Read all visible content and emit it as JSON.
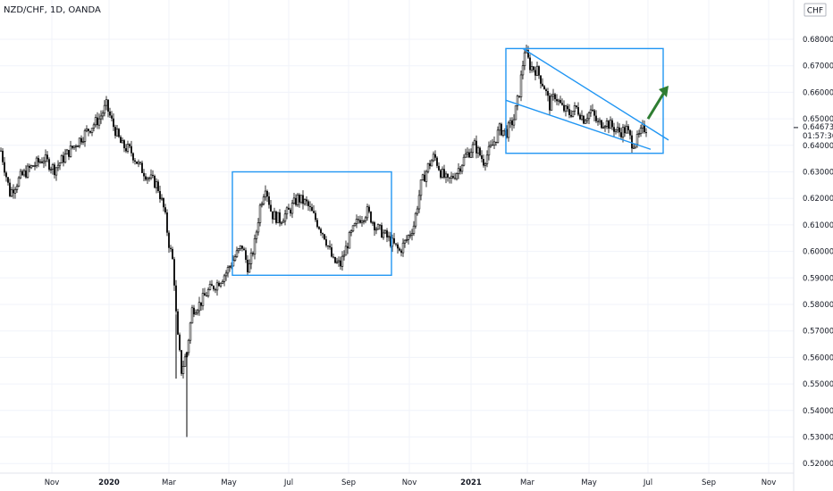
{
  "symbol_title": "NZD/CHF, 1D, OANDA",
  "currency": "CHF",
  "current_price": "0.64673",
  "countdown": "01:57:36",
  "colors": {
    "candle": "#000000",
    "box": "#2196f3",
    "arrow": "#2e7d32",
    "grid": "#f0f3fa"
  },
  "chart_data": {
    "type": "candlestick",
    "title": "NZD/CHF, 1D, OANDA",
    "ylim": [
      0.515,
      0.69
    ],
    "grid": false,
    "y_ticks": [
      "0.68000",
      "0.67000",
      "0.66000",
      "0.65000",
      "0.64000",
      "0.63000",
      "0.62000",
      "0.61000",
      "0.60000",
      "0.59000",
      "0.58000",
      "0.57000",
      "0.56000",
      "0.55000",
      "0.54000",
      "0.53000",
      "0.52000"
    ],
    "x_ticks": [
      {
        "label": "Nov",
        "bold": false
      },
      {
        "label": "2020",
        "bold": true
      },
      {
        "label": "Mar",
        "bold": false
      },
      {
        "label": "May",
        "bold": false
      },
      {
        "label": "Jul",
        "bold": false
      },
      {
        "label": "Sep",
        "bold": false
      },
      {
        "label": "Nov",
        "bold": false
      },
      {
        "label": "2021",
        "bold": true
      },
      {
        "label": "Mar",
        "bold": false
      },
      {
        "label": "May",
        "bold": false
      },
      {
        "label": "Jul",
        "bold": false
      },
      {
        "label": "Sep",
        "bold": false
      },
      {
        "label": "Nov",
        "bold": false
      }
    ],
    "price_path": [
      [
        0,
        0.638
      ],
      [
        10,
        0.622
      ],
      [
        22,
        0.628
      ],
      [
        35,
        0.632
      ],
      [
        48,
        0.635
      ],
      [
        60,
        0.631
      ],
      [
        72,
        0.636
      ],
      [
        85,
        0.641
      ],
      [
        98,
        0.646
      ],
      [
        110,
        0.65
      ],
      [
        118,
        0.655
      ],
      [
        125,
        0.648
      ],
      [
        135,
        0.64
      ],
      [
        145,
        0.638
      ],
      [
        155,
        0.632
      ],
      [
        165,
        0.628
      ],
      [
        175,
        0.625
      ],
      [
        183,
        0.615
      ],
      [
        188,
        0.603
      ],
      [
        193,
        0.595
      ],
      [
        197,
        0.57
      ],
      [
        202,
        0.555
      ],
      [
        208,
        0.562
      ],
      [
        214,
        0.578
      ],
      [
        222,
        0.58
      ],
      [
        232,
        0.585
      ],
      [
        242,
        0.588
      ],
      [
        252,
        0.592
      ],
      [
        262,
        0.598
      ],
      [
        270,
        0.602
      ],
      [
        277,
        0.593
      ],
      [
        284,
        0.603
      ],
      [
        290,
        0.617
      ],
      [
        296,
        0.625
      ],
      [
        303,
        0.614
      ],
      [
        312,
        0.612
      ],
      [
        322,
        0.615
      ],
      [
        332,
        0.62
      ],
      [
        342,
        0.618
      ],
      [
        352,
        0.612
      ],
      [
        362,
        0.606
      ],
      [
        372,
        0.596
      ],
      [
        380,
        0.595
      ],
      [
        390,
        0.605
      ],
      [
        400,
        0.612
      ],
      [
        410,
        0.615
      ],
      [
        420,
        0.609
      ],
      [
        430,
        0.606
      ],
      [
        438,
        0.603
      ],
      [
        446,
        0.6
      ],
      [
        455,
        0.605
      ],
      [
        462,
        0.61
      ],
      [
        470,
        0.625
      ],
      [
        478,
        0.632
      ],
      [
        485,
        0.636
      ],
      [
        492,
        0.63
      ],
      [
        500,
        0.626
      ],
      [
        510,
        0.63
      ],
      [
        520,
        0.636
      ],
      [
        530,
        0.64
      ],
      [
        540,
        0.634
      ],
      [
        550,
        0.64
      ],
      [
        558,
        0.646
      ],
      [
        566,
        0.645
      ],
      [
        574,
        0.65
      ],
      [
        580,
        0.66
      ],
      [
        586,
        0.676
      ],
      [
        592,
        0.67
      ],
      [
        600,
        0.668
      ],
      [
        608,
        0.662
      ],
      [
        614,
        0.655
      ],
      [
        620,
        0.659
      ],
      [
        628,
        0.654
      ],
      [
        636,
        0.652
      ],
      [
        644,
        0.654
      ],
      [
        652,
        0.65
      ],
      [
        660,
        0.653
      ],
      [
        668,
        0.648
      ],
      [
        676,
        0.649
      ],
      [
        684,
        0.647
      ],
      [
        692,
        0.645
      ],
      [
        700,
        0.646
      ],
      [
        706,
        0.641
      ],
      [
        712,
        0.642
      ],
      [
        718,
        0.646
      ],
      [
        722,
        0.6467
      ]
    ],
    "extreme_wicks": [
      {
        "day": 208,
        "low": 0.53
      },
      {
        "day": 196,
        "low": 0.552
      }
    ],
    "annotations": [
      {
        "type": "rectangle",
        "x": [
          260,
          438
        ],
        "y": [
          0.591,
          0.63
        ]
      },
      {
        "type": "rectangle",
        "x": [
          566,
          742
        ],
        "y": [
          0.637,
          0.6765
        ]
      },
      {
        "type": "trendline",
        "x": [
          585,
          748
        ],
        "y": [
          0.6765,
          0.642
        ]
      },
      {
        "type": "trendline",
        "x": [
          566,
          728
        ],
        "y": [
          0.657,
          0.6385
        ]
      },
      {
        "type": "arrow",
        "x": [
          725,
          748
        ],
        "y": [
          0.65,
          0.6625
        ]
      }
    ]
  }
}
